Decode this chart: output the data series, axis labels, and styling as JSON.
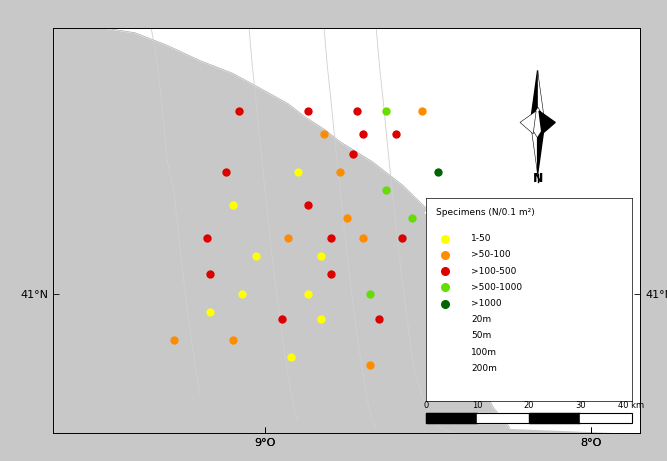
{
  "fig_width": 6.67,
  "fig_height": 4.61,
  "dpi": 100,
  "background_color": "#c8c8c8",
  "land_color": "#ffffff",
  "sea_color": "#c8c8c8",
  "xlim": [
    -9.65,
    -7.85
  ],
  "ylim": [
    40.45,
    42.05
  ],
  "xticks": [
    -9.0,
    -8.0
  ],
  "xtick_labels": [
    "9°O",
    "8°O"
  ],
  "yticks": [
    41.0
  ],
  "ytick_labels": [
    "41°N"
  ],
  "legend_title": "Specimens (N/0.1 m²)",
  "legend_items": [
    {
      "label": "1-50",
      "color": "#ffff00"
    },
    {
      "label": ">50-100",
      "color": "#ff8c00"
    },
    {
      "label": ">100-500",
      "color": "#dd0000"
    },
    {
      "label": ">500-1000",
      "color": "#66dd00"
    },
    {
      "label": ">1000",
      "color": "#006400"
    }
  ],
  "depth_labels": [
    "20m",
    "50m",
    "100m",
    "200m"
  ],
  "specimens": [
    {
      "lon": -9.08,
      "lat": 41.72,
      "color": "#dd0000"
    },
    {
      "lon": -8.87,
      "lat": 41.72,
      "color": "#dd0000"
    },
    {
      "lon": -8.72,
      "lat": 41.72,
      "color": "#dd0000"
    },
    {
      "lon": -8.63,
      "lat": 41.72,
      "color": "#66dd00"
    },
    {
      "lon": -8.52,
      "lat": 41.72,
      "color": "#ff8c00"
    },
    {
      "lon": -8.82,
      "lat": 41.63,
      "color": "#ff8c00"
    },
    {
      "lon": -8.7,
      "lat": 41.63,
      "color": "#dd0000"
    },
    {
      "lon": -8.6,
      "lat": 41.63,
      "color": "#dd0000"
    },
    {
      "lon": -8.73,
      "lat": 41.55,
      "color": "#dd0000"
    },
    {
      "lon": -9.12,
      "lat": 41.48,
      "color": "#dd0000"
    },
    {
      "lon": -8.9,
      "lat": 41.48,
      "color": "#ffff00"
    },
    {
      "lon": -8.77,
      "lat": 41.48,
      "color": "#ff8c00"
    },
    {
      "lon": -8.47,
      "lat": 41.48,
      "color": "#006400"
    },
    {
      "lon": -8.63,
      "lat": 41.41,
      "color": "#66dd00"
    },
    {
      "lon": -9.1,
      "lat": 41.35,
      "color": "#ffff00"
    },
    {
      "lon": -8.87,
      "lat": 41.35,
      "color": "#dd0000"
    },
    {
      "lon": -8.75,
      "lat": 41.3,
      "color": "#ff8c00"
    },
    {
      "lon": -8.55,
      "lat": 41.3,
      "color": "#66dd00"
    },
    {
      "lon": -9.18,
      "lat": 41.22,
      "color": "#dd0000"
    },
    {
      "lon": -8.93,
      "lat": 41.22,
      "color": "#ff8c00"
    },
    {
      "lon": -8.8,
      "lat": 41.22,
      "color": "#dd0000"
    },
    {
      "lon": -8.7,
      "lat": 41.22,
      "color": "#ff8c00"
    },
    {
      "lon": -8.58,
      "lat": 41.22,
      "color": "#dd0000"
    },
    {
      "lon": -9.03,
      "lat": 41.15,
      "color": "#ffff00"
    },
    {
      "lon": -8.83,
      "lat": 41.15,
      "color": "#ffff00"
    },
    {
      "lon": -9.17,
      "lat": 41.08,
      "color": "#dd0000"
    },
    {
      "lon": -8.8,
      "lat": 41.08,
      "color": "#dd0000"
    },
    {
      "lon": -9.07,
      "lat": 41.0,
      "color": "#ffff00"
    },
    {
      "lon": -8.87,
      "lat": 41.0,
      "color": "#ffff00"
    },
    {
      "lon": -8.68,
      "lat": 41.0,
      "color": "#66dd00"
    },
    {
      "lon": -9.17,
      "lat": 40.93,
      "color": "#ffff00"
    },
    {
      "lon": -8.95,
      "lat": 40.9,
      "color": "#dd0000"
    },
    {
      "lon": -8.83,
      "lat": 40.9,
      "color": "#ffff00"
    },
    {
      "lon": -8.65,
      "lat": 40.9,
      "color": "#dd0000"
    },
    {
      "lon": -9.28,
      "lat": 40.82,
      "color": "#ff8c00"
    },
    {
      "lon": -9.1,
      "lat": 40.82,
      "color": "#ff8c00"
    },
    {
      "lon": -8.92,
      "lat": 40.75,
      "color": "#ffff00"
    },
    {
      "lon": -8.68,
      "lat": 40.72,
      "color": "#ff8c00"
    }
  ],
  "depth_contour_color": "#d0d0d0",
  "coastline": {
    "land_lon": [
      -9.65,
      -9.65,
      -9.5,
      -9.4,
      -9.3,
      -9.2,
      -9.1,
      -9.0,
      -8.93,
      -8.88,
      -8.82,
      -8.77,
      -8.72,
      -8.67,
      -8.62,
      -8.58,
      -8.54,
      -8.5,
      -8.47,
      -8.44,
      -8.42,
      -8.4,
      -8.38,
      -8.37,
      -8.36,
      -8.35,
      -8.34,
      -8.33,
      -8.32,
      -8.3,
      -8.28,
      -8.26,
      -8.25,
      -7.85,
      -7.85
    ],
    "land_lat": [
      40.45,
      42.05,
      42.05,
      42.03,
      41.98,
      41.92,
      41.87,
      41.8,
      41.75,
      41.7,
      41.65,
      41.6,
      41.56,
      41.52,
      41.47,
      41.43,
      41.38,
      41.33,
      41.28,
      41.22,
      41.16,
      41.1,
      41.03,
      40.96,
      40.88,
      40.8,
      40.72,
      40.65,
      40.6,
      40.55,
      40.52,
      40.49,
      40.47,
      40.45,
      40.45
    ]
  },
  "contours": {
    "c20_lon": [
      -8.66,
      -8.65,
      -8.64,
      -8.63,
      -8.62,
      -8.61,
      -8.6,
      -8.59,
      -8.58,
      -8.57,
      -8.56,
      -8.55,
      -8.54,
      -8.52,
      -8.5,
      -8.48,
      -8.46,
      -8.44,
      -8.43
    ],
    "c20_lat": [
      42.05,
      41.9,
      41.78,
      41.65,
      41.52,
      41.4,
      41.28,
      41.16,
      41.05,
      40.95,
      40.85,
      40.76,
      40.68,
      40.6,
      40.54,
      40.5,
      40.47,
      40.46,
      40.45
    ],
    "c50_lon": [
      -8.82,
      -8.81,
      -8.8,
      -8.79,
      -8.78,
      -8.77,
      -8.76,
      -8.75,
      -8.74,
      -8.73,
      -8.72,
      -8.71,
      -8.7,
      -8.69,
      -8.68,
      -8.67,
      -8.66
    ],
    "c50_lat": [
      42.05,
      41.9,
      41.78,
      41.65,
      41.52,
      41.4,
      41.28,
      41.16,
      41.05,
      40.95,
      40.85,
      40.76,
      40.68,
      40.6,
      40.54,
      40.5,
      40.47
    ],
    "c100_lon": [
      -9.05,
      -9.04,
      -9.03,
      -9.02,
      -9.01,
      -9.0,
      -8.99,
      -8.98,
      -8.97,
      -8.96,
      -8.95,
      -8.94,
      -8.93,
      -8.92,
      -8.91,
      -8.9
    ],
    "c100_lat": [
      42.05,
      41.9,
      41.78,
      41.65,
      41.52,
      41.4,
      41.28,
      41.16,
      41.05,
      40.95,
      40.85,
      40.76,
      40.68,
      40.6,
      40.54,
      40.5
    ],
    "c200_lon": [
      -9.35,
      -9.33,
      -9.32,
      -9.31,
      -9.3,
      -9.28,
      -9.27,
      -9.26,
      -9.25,
      -9.24,
      -9.23,
      -9.22,
      -9.21,
      -9.2
    ],
    "c200_lat": [
      42.05,
      41.9,
      41.78,
      41.65,
      41.52,
      41.4,
      41.28,
      41.16,
      41.05,
      40.95,
      40.85,
      40.76,
      40.68,
      40.6
    ]
  }
}
